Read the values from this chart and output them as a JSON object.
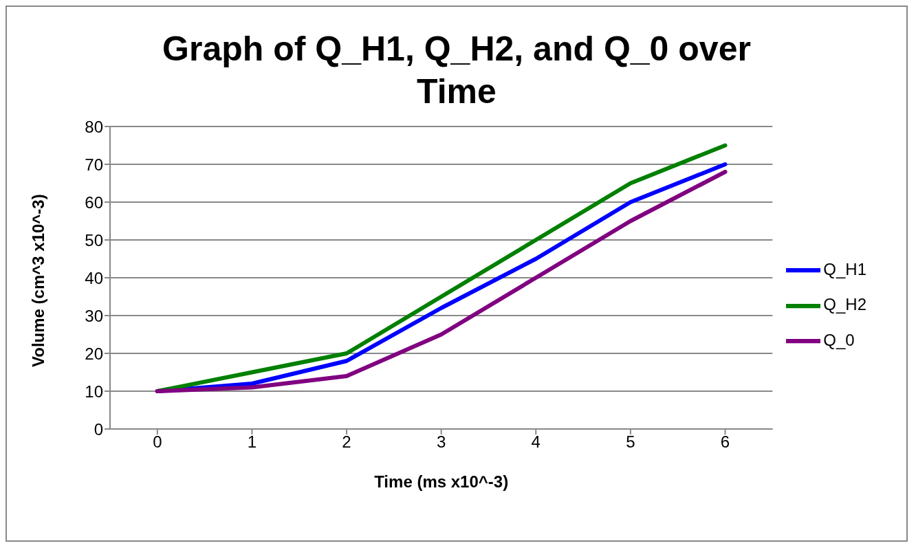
{
  "chart_data": {
    "type": "line",
    "title": "Graph of Q_H1, Q_H2, and Q_0 over Time",
    "xlabel": "Time (ms x10^-3)",
    "ylabel": "Volume (cm^3 x10^-3)",
    "categories": [
      "0",
      "1",
      "2",
      "3",
      "4",
      "5",
      "6"
    ],
    "series": [
      {
        "name": "Q_H1",
        "color": "#0000ff",
        "values": [
          10,
          12,
          18,
          32,
          45,
          60,
          70
        ]
      },
      {
        "name": "Q_H2",
        "color": "#008000",
        "values": [
          10,
          15,
          20,
          35,
          50,
          65,
          75
        ]
      },
      {
        "name": "Q_0",
        "color": "#800080",
        "values": [
          10,
          11,
          14,
          25,
          40,
          55,
          68
        ]
      }
    ],
    "ylim": [
      0,
      80
    ],
    "yticks": [
      0,
      10,
      20,
      30,
      40,
      50,
      60,
      70,
      80
    ],
    "grid": "y",
    "legend": "right",
    "marker": "none",
    "line_style": "solid"
  }
}
